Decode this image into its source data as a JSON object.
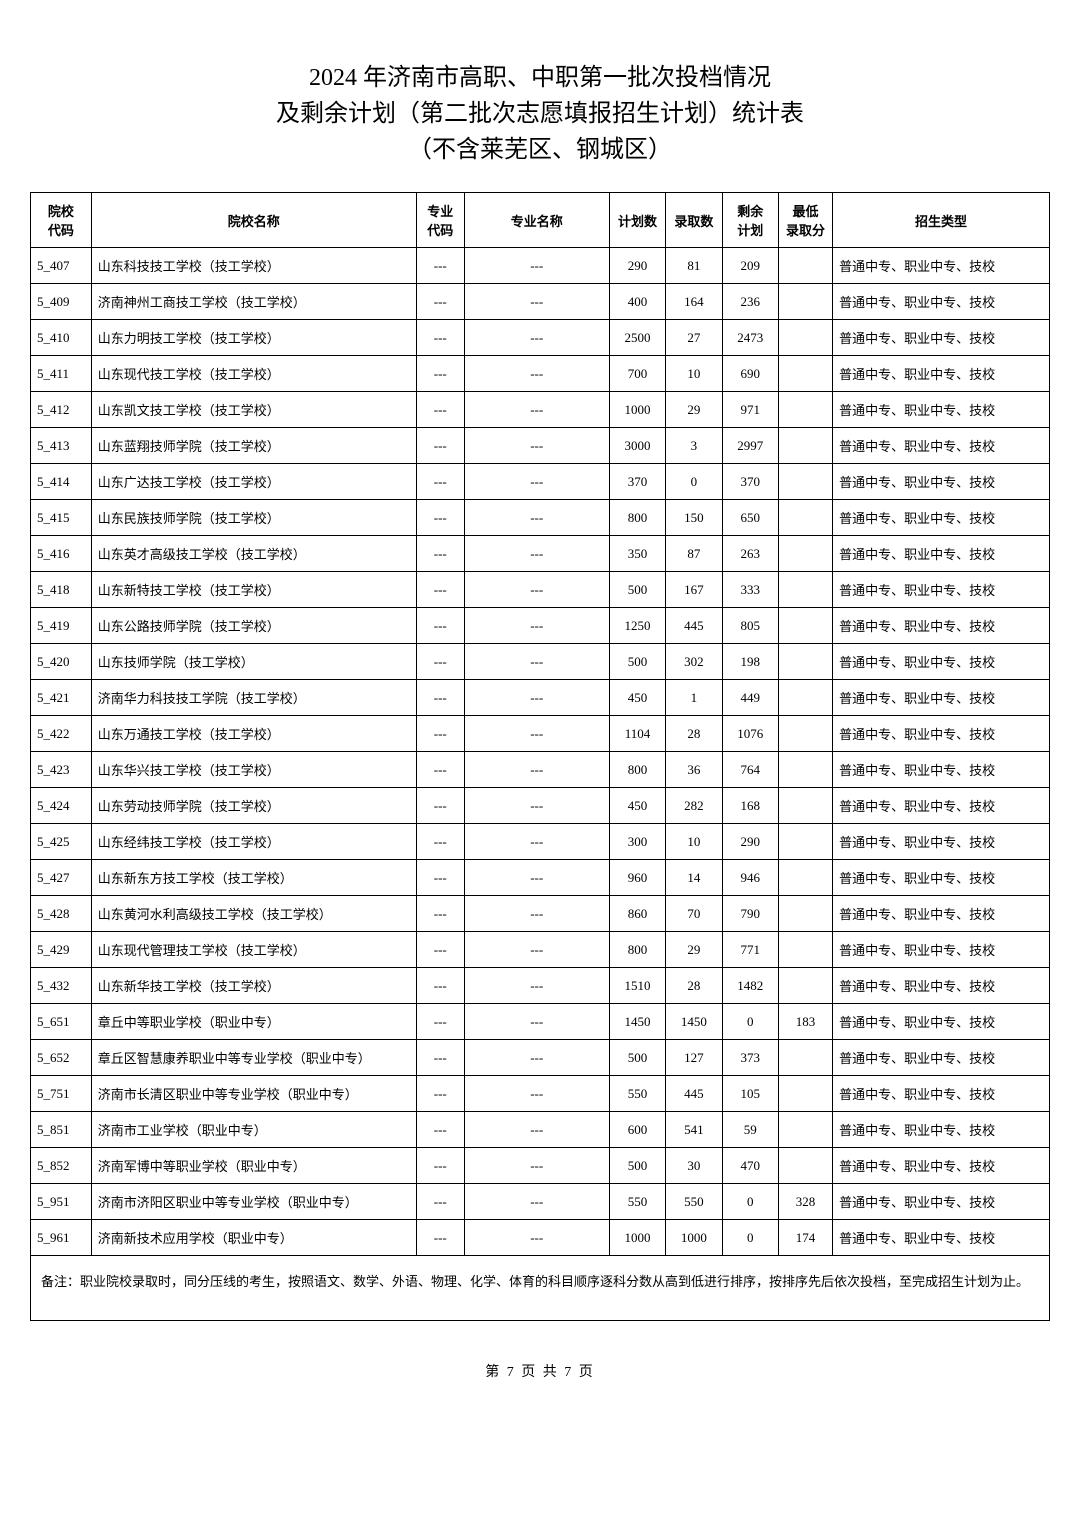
{
  "title_line1": "2024 年济南市高职、中职第一批次投档情况",
  "title_line2": "及剩余计划（第二批次志愿填报招生计划）统计表",
  "title_line3": "（不含莱芜区、钢城区）",
  "columns": [
    "院校\n代码",
    "院校名称",
    "专业\n代码",
    "专业名称",
    "计划数",
    "录取数",
    "剩余\n计划",
    "最低\n录取分",
    "招生类型"
  ],
  "rows": [
    [
      "5_407",
      "山东科技技工学校（技工学校）",
      "---",
      "---",
      "290",
      "81",
      "209",
      "",
      "普通中专、职业中专、技校"
    ],
    [
      "5_409",
      "济南神州工商技工学校（技工学校）",
      "---",
      "---",
      "400",
      "164",
      "236",
      "",
      "普通中专、职业中专、技校"
    ],
    [
      "5_410",
      "山东力明技工学校（技工学校）",
      "---",
      "---",
      "2500",
      "27",
      "2473",
      "",
      "普通中专、职业中专、技校"
    ],
    [
      "5_411",
      "山东现代技工学校（技工学校）",
      "---",
      "---",
      "700",
      "10",
      "690",
      "",
      "普通中专、职业中专、技校"
    ],
    [
      "5_412",
      "山东凯文技工学校（技工学校）",
      "---",
      "---",
      "1000",
      "29",
      "971",
      "",
      "普通中专、职业中专、技校"
    ],
    [
      "5_413",
      "山东蓝翔技师学院（技工学校）",
      "---",
      "---",
      "3000",
      "3",
      "2997",
      "",
      "普通中专、职业中专、技校"
    ],
    [
      "5_414",
      "山东广达技工学校（技工学校）",
      "---",
      "---",
      "370",
      "0",
      "370",
      "",
      "普通中专、职业中专、技校"
    ],
    [
      "5_415",
      "山东民族技师学院（技工学校）",
      "---",
      "---",
      "800",
      "150",
      "650",
      "",
      "普通中专、职业中专、技校"
    ],
    [
      "5_416",
      "山东英才高级技工学校（技工学校）",
      "---",
      "---",
      "350",
      "87",
      "263",
      "",
      "普通中专、职业中专、技校"
    ],
    [
      "5_418",
      "山东新特技工学校（技工学校）",
      "---",
      "---",
      "500",
      "167",
      "333",
      "",
      "普通中专、职业中专、技校"
    ],
    [
      "5_419",
      "山东公路技师学院（技工学校）",
      "---",
      "---",
      "1250",
      "445",
      "805",
      "",
      "普通中专、职业中专、技校"
    ],
    [
      "5_420",
      "山东技师学院（技工学校）",
      "---",
      "---",
      "500",
      "302",
      "198",
      "",
      "普通中专、职业中专、技校"
    ],
    [
      "5_421",
      "济南华力科技技工学院（技工学校）",
      "---",
      "---",
      "450",
      "1",
      "449",
      "",
      "普通中专、职业中专、技校"
    ],
    [
      "5_422",
      "山东万通技工学校（技工学校）",
      "---",
      "---",
      "1104",
      "28",
      "1076",
      "",
      "普通中专、职业中专、技校"
    ],
    [
      "5_423",
      "山东华兴技工学校（技工学校）",
      "---",
      "---",
      "800",
      "36",
      "764",
      "",
      "普通中专、职业中专、技校"
    ],
    [
      "5_424",
      "山东劳动技师学院（技工学校）",
      "---",
      "---",
      "450",
      "282",
      "168",
      "",
      "普通中专、职业中专、技校"
    ],
    [
      "5_425",
      "山东经纬技工学校（技工学校）",
      "---",
      "---",
      "300",
      "10",
      "290",
      "",
      "普通中专、职业中专、技校"
    ],
    [
      "5_427",
      "山东新东方技工学校（技工学校）",
      "---",
      "---",
      "960",
      "14",
      "946",
      "",
      "普通中专、职业中专、技校"
    ],
    [
      "5_428",
      "山东黄河水利高级技工学校（技工学校）",
      "---",
      "---",
      "860",
      "70",
      "790",
      "",
      "普通中专、职业中专、技校"
    ],
    [
      "5_429",
      "山东现代管理技工学校（技工学校）",
      "---",
      "---",
      "800",
      "29",
      "771",
      "",
      "普通中专、职业中专、技校"
    ],
    [
      "5_432",
      "山东新华技工学校（技工学校）",
      "---",
      "---",
      "1510",
      "28",
      "1482",
      "",
      "普通中专、职业中专、技校"
    ],
    [
      "5_651",
      "章丘中等职业学校（职业中专）",
      "---",
      "---",
      "1450",
      "1450",
      "0",
      "183",
      "普通中专、职业中专、技校"
    ],
    [
      "5_652",
      "章丘区智慧康养职业中等专业学校（职业中专）",
      "---",
      "---",
      "500",
      "127",
      "373",
      "",
      "普通中专、职业中专、技校"
    ],
    [
      "5_751",
      "济南市长清区职业中等专业学校（职业中专）",
      "---",
      "---",
      "550",
      "445",
      "105",
      "",
      "普通中专、职业中专、技校"
    ],
    [
      "5_851",
      "济南市工业学校（职业中专）",
      "---",
      "---",
      "600",
      "541",
      "59",
      "",
      "普通中专、职业中专、技校"
    ],
    [
      "5_852",
      "济南军博中等职业学校（职业中专）",
      "---",
      "---",
      "500",
      "30",
      "470",
      "",
      "普通中专、职业中专、技校"
    ],
    [
      "5_951",
      "济南市济阳区职业中等专业学校（职业中专）",
      "---",
      "---",
      "550",
      "550",
      "0",
      "328",
      "普通中专、职业中专、技校"
    ],
    [
      "5_961",
      "济南新技术应用学校（职业中专）",
      "---",
      "---",
      "1000",
      "1000",
      "0",
      "174",
      "普通中专、职业中专、技校"
    ]
  ],
  "note": "备注：职业院校录取时，同分压线的考生，按照语文、数学、外语、物理、化学、体育的科目顺序逐科分数从高到低进行排序，按排序先后依次投档，至完成招生计划为止。",
  "footer": "第 7 页 共 7 页"
}
